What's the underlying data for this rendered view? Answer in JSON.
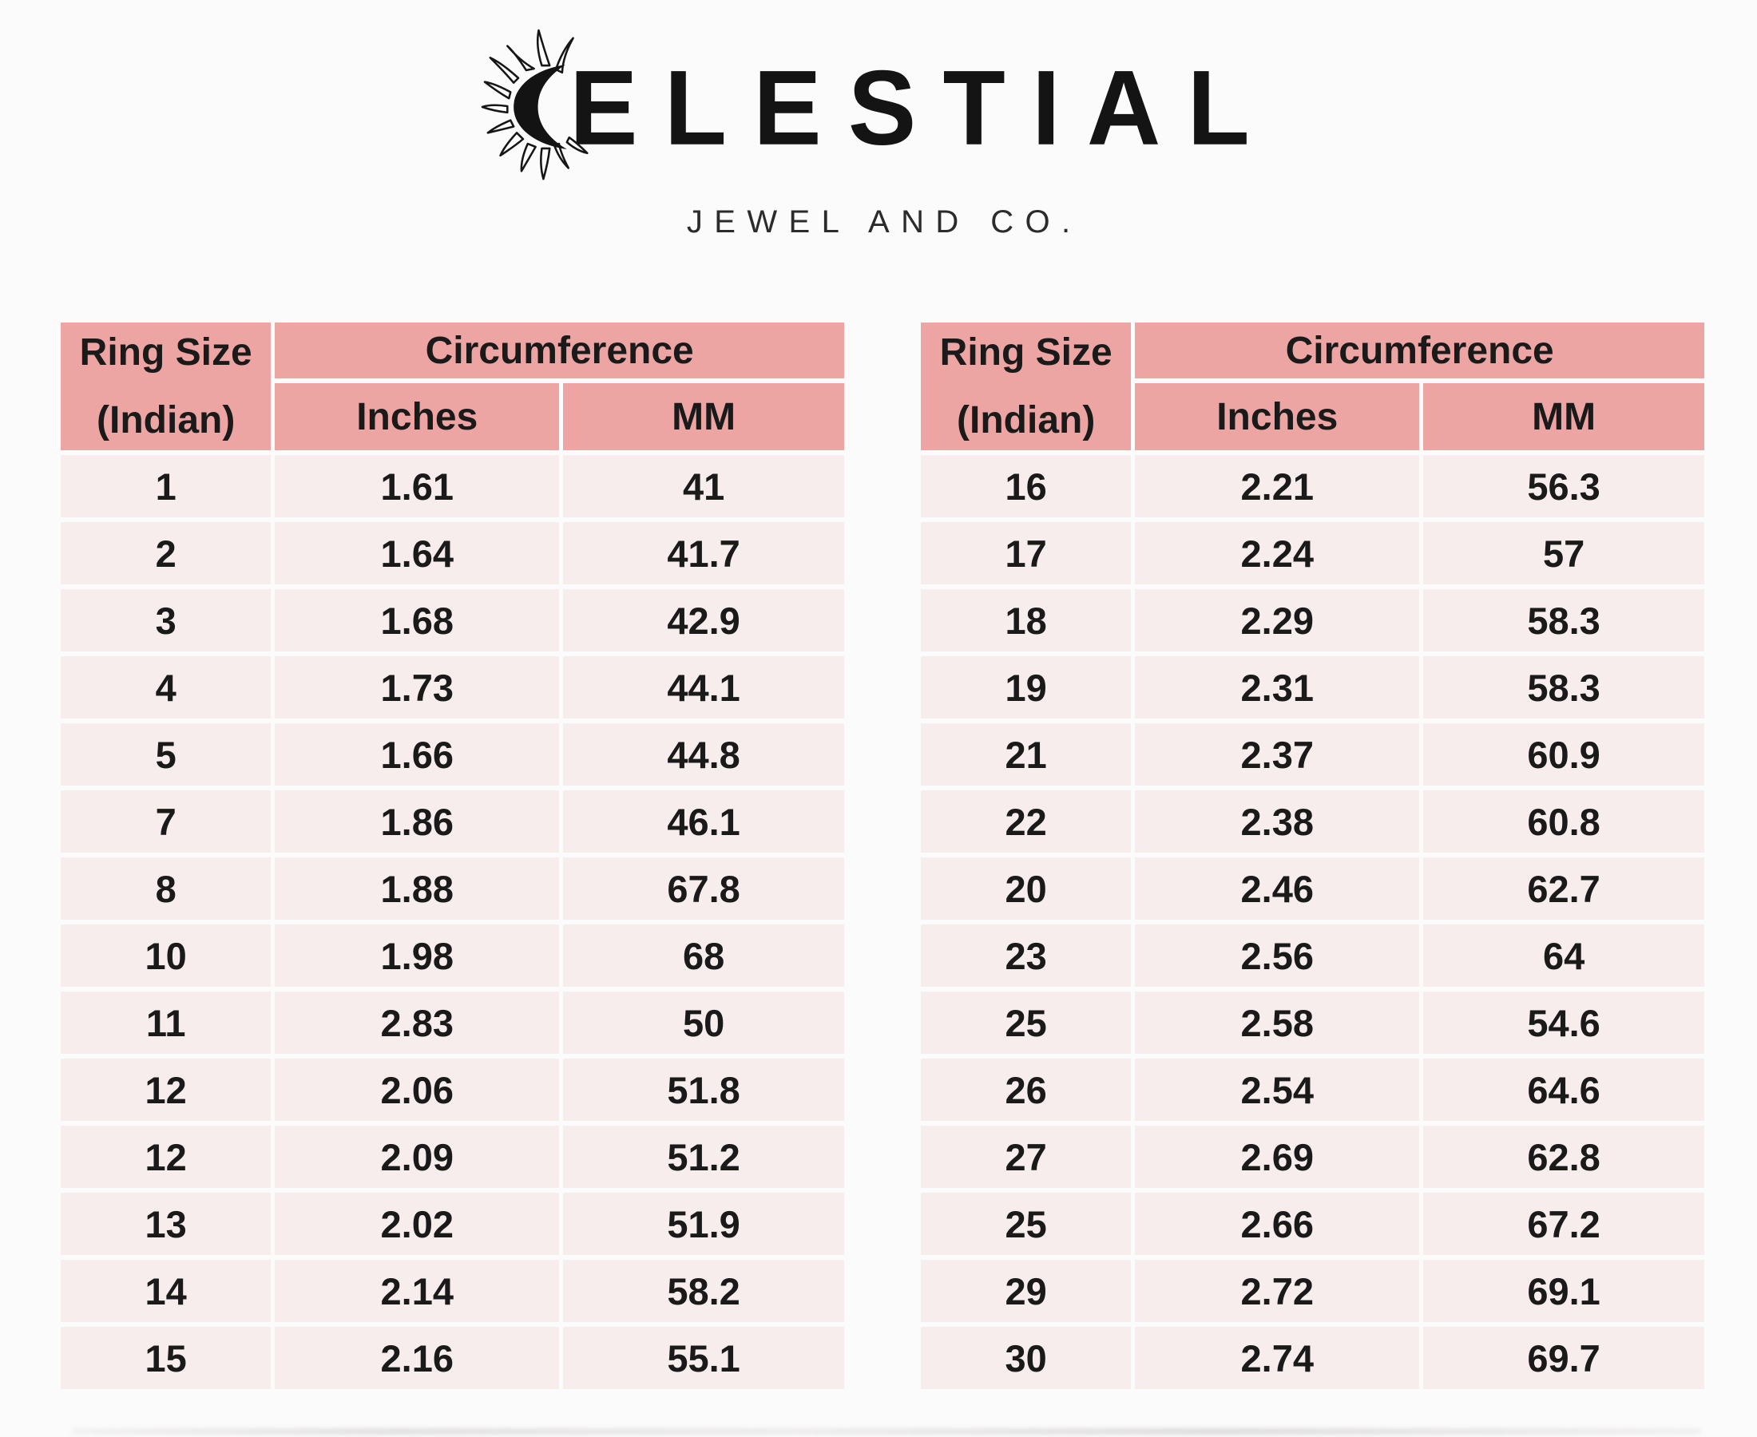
{
  "brand": {
    "name": "CELESTIAL",
    "display_letters": "ELESTIAL",
    "icon": "sun-crescent-icon",
    "tagline": "JEWEL AND CO."
  },
  "table_headers": {
    "col1_line1": "Ring Size",
    "col1_line2": "(Indian)",
    "group": "Circumference",
    "sub_inches": "Inches",
    "sub_mm": "MM"
  },
  "colors": {
    "header_bg": "#eca5a2",
    "row_bg": "#f6edec",
    "page_bg": "#fcfbfb",
    "text": "#1b1a1a",
    "logo_text": "#141414"
  },
  "chart_data": {
    "type": "table",
    "title": "Celestial Jewel and Co. — Indian ring size to circumference conversion chart",
    "columns": [
      "Ring Size (Indian)",
      "Circumference Inches",
      "Circumference MM"
    ],
    "column_group_label": "Circumference",
    "tables": [
      {
        "id": "left",
        "rows": [
          [
            "1",
            "1.61",
            "41"
          ],
          [
            "2",
            "1.64",
            "41.7"
          ],
          [
            "3",
            "1.68",
            "42.9"
          ],
          [
            "4",
            "1.73",
            "44.1"
          ],
          [
            "5",
            "1.66",
            "44.8"
          ],
          [
            "7",
            "1.86",
            "46.1"
          ],
          [
            "8",
            "1.88",
            "67.8"
          ],
          [
            "10",
            "1.98",
            "68"
          ],
          [
            "11",
            "2.83",
            "50"
          ],
          [
            "12",
            "2.06",
            "51.8"
          ],
          [
            "12",
            "2.09",
            "51.2"
          ],
          [
            "13",
            "2.02",
            "51.9"
          ],
          [
            "14",
            "2.14",
            "58.2"
          ],
          [
            "15",
            "2.16",
            "55.1"
          ]
        ]
      },
      {
        "id": "right",
        "rows": [
          [
            "16",
            "2.21",
            "56.3"
          ],
          [
            "17",
            "2.24",
            "57"
          ],
          [
            "18",
            "2.29",
            "58.3"
          ],
          [
            "19",
            "2.31",
            "58.3"
          ],
          [
            "21",
            "2.37",
            "60.9"
          ],
          [
            "22",
            "2.38",
            "60.8"
          ],
          [
            "20",
            "2.46",
            "62.7"
          ],
          [
            "23",
            "2.56",
            "64"
          ],
          [
            "25",
            "2.58",
            "54.6"
          ],
          [
            "26",
            "2.54",
            "64.6"
          ],
          [
            "27",
            "2.69",
            "62.8"
          ],
          [
            "25",
            "2.66",
            "67.2"
          ],
          [
            "29",
            "2.72",
            "69.1"
          ],
          [
            "30",
            "2.74",
            "69.7"
          ]
        ]
      }
    ]
  }
}
